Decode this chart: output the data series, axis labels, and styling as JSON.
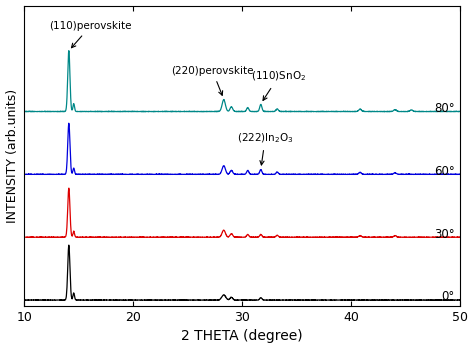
{
  "xlabel": "2 THETA (degree)",
  "ylabel": "INTENSITY (arb.units)",
  "xlim": [
    10,
    50
  ],
  "x_ticks": [
    10,
    20,
    30,
    40,
    50
  ],
  "colors": {
    "0deg": "#000000",
    "30deg": "#dd0000",
    "60deg": "#0000dd",
    "80deg": "#008888"
  },
  "offsets": {
    "0deg": 0.0,
    "30deg": 1.6,
    "60deg": 3.2,
    "80deg": 4.8
  },
  "labels": {
    "0deg": "0°",
    "30deg": "30°",
    "60deg": "60°",
    "80deg": "80°"
  },
  "background_color": "#ffffff"
}
